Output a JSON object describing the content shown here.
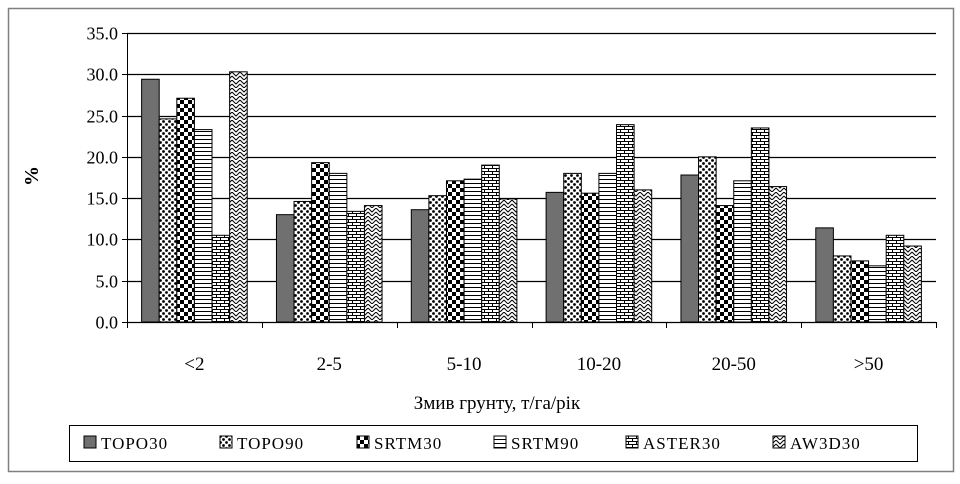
{
  "chart_data": {
    "type": "bar",
    "title": "",
    "xlabel": "Змив грунту, т/га/рік",
    "ylabel": "%",
    "ylim": [
      0,
      35
    ],
    "yticks": [
      "0.0",
      "5.0",
      "10.0",
      "15.0",
      "20.0",
      "25.0",
      "30.0",
      "35.0"
    ],
    "grid": true,
    "legend_position": "bottom",
    "categories": [
      "<2",
      "2-5",
      "5-10",
      "10-20",
      "20-50",
      ">50"
    ],
    "series": [
      {
        "name": "TOPO30",
        "pattern": "solid",
        "values": [
          29.4,
          13.0,
          13.6,
          15.7,
          17.8,
          11.4
        ]
      },
      {
        "name": "TOPO90",
        "pattern": "dots",
        "values": [
          24.6,
          14.6,
          15.3,
          18.0,
          20.0,
          8.0
        ]
      },
      {
        "name": "SRTM30",
        "pattern": "checker",
        "values": [
          27.1,
          19.3,
          17.1,
          15.6,
          14.1,
          7.4
        ]
      },
      {
        "name": "SRTM90",
        "pattern": "hlines",
        "values": [
          23.3,
          18.0,
          17.3,
          18.0,
          17.1,
          6.8
        ]
      },
      {
        "name": "ASTER30",
        "pattern": "brick",
        "values": [
          10.5,
          13.4,
          19.0,
          23.9,
          23.5,
          10.5
        ]
      },
      {
        "name": "AW3D30",
        "pattern": "zigzag",
        "values": [
          30.3,
          14.1,
          14.9,
          16.0,
          16.4,
          9.2
        ]
      }
    ]
  }
}
